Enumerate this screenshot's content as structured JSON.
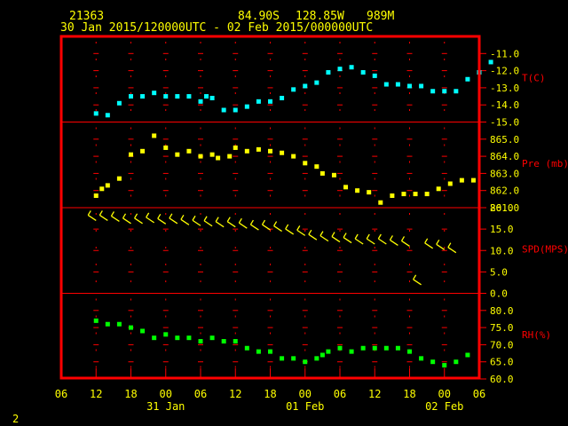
{
  "header": {
    "station_id": "21363",
    "latitude": "84.90S",
    "longitude": "128.85W",
    "pressure_level": "989M",
    "time_range": "30 Jan 2015/120000UTC - 02 Feb 2015/000000UTC"
  },
  "corner_label": "2",
  "colors": {
    "frame": "#ff0000",
    "tick_labels": "#ffff00",
    "temperature": "#00ffff",
    "pressure": "#ffff00",
    "wind": "#ffff00",
    "humidity": "#00ff00",
    "background": "#000000"
  },
  "chart_data": {
    "type": "scatter",
    "x_unit": "hours since 30 Jan 2015 00 UTC",
    "x_ticks": [
      "06",
      "12",
      "18",
      "00",
      "06",
      "12",
      "18",
      "00",
      "06",
      "12",
      "18",
      "00",
      "06"
    ],
    "x_tick_values": [
      6,
      12,
      18,
      24,
      30,
      36,
      42,
      48,
      54,
      60,
      66,
      72,
      78
    ],
    "date_labels": [
      {
        "text": "31 Jan",
        "x": 24
      },
      {
        "text": "01 Feb",
        "x": 48
      },
      {
        "text": "02 Feb",
        "x": 72
      }
    ],
    "xlim": [
      6,
      78
    ],
    "panels": [
      {
        "key": "T",
        "label": "T(C)",
        "ylim": [
          -15.0,
          -10.0
        ],
        "ticks": [
          "-11.0",
          "-12.0",
          "-13.0",
          "-14.0",
          "-15.0"
        ],
        "tick_values": [
          -11,
          -12,
          -13,
          -14,
          -15
        ],
        "color_key": "temperature",
        "points": [
          [
            12,
            -14.5
          ],
          [
            14,
            -14.6
          ],
          [
            16,
            -13.9
          ],
          [
            18,
            -13.5
          ],
          [
            20,
            -13.5
          ],
          [
            22,
            -13.3
          ],
          [
            24,
            -13.5
          ],
          [
            26,
            -13.5
          ],
          [
            28,
            -13.5
          ],
          [
            30,
            -13.8
          ],
          [
            31,
            -13.5
          ],
          [
            32,
            -13.6
          ],
          [
            34,
            -14.3
          ],
          [
            36,
            -14.3
          ],
          [
            38,
            -14.1
          ],
          [
            40,
            -13.8
          ],
          [
            42,
            -13.8
          ],
          [
            44,
            -13.6
          ],
          [
            46,
            -13.1
          ],
          [
            48,
            -12.9
          ],
          [
            50,
            -12.7
          ],
          [
            52,
            -12.1
          ],
          [
            54,
            -11.9
          ],
          [
            56,
            -11.8
          ],
          [
            58,
            -12.1
          ],
          [
            60,
            -12.3
          ],
          [
            62,
            -12.8
          ],
          [
            64,
            -12.8
          ],
          [
            66,
            -12.9
          ],
          [
            68,
            -12.9
          ],
          [
            70,
            -13.2
          ],
          [
            72,
            -13.2
          ],
          [
            74,
            -13.2
          ],
          [
            76,
            -12.5
          ],
          [
            78,
            -12.1
          ],
          [
            80,
            -11.5
          ]
        ]
      },
      {
        "key": "P",
        "label": "Pre (mb)",
        "ylim": [
          861.0,
          866.0
        ],
        "ticks": [
          "865.0",
          "864.0",
          "863.0",
          "862.0",
          "861.0"
        ],
        "tick_values": [
          865,
          864,
          863,
          862,
          861
        ],
        "color_key": "pressure",
        "points": [
          [
            12,
            861.7
          ],
          [
            13,
            862.1
          ],
          [
            14,
            862.3
          ],
          [
            16,
            862.7
          ],
          [
            18,
            864.1
          ],
          [
            20,
            864.3
          ],
          [
            22,
            865.2
          ],
          [
            24,
            864.5
          ],
          [
            26,
            864.1
          ],
          [
            28,
            864.3
          ],
          [
            30,
            864.0
          ],
          [
            32,
            864.1
          ],
          [
            33,
            863.9
          ],
          [
            35,
            864.0
          ],
          [
            36,
            864.5
          ],
          [
            38,
            864.3
          ],
          [
            40,
            864.4
          ],
          [
            42,
            864.3
          ],
          [
            44,
            864.2
          ],
          [
            46,
            864.0
          ],
          [
            48,
            863.6
          ],
          [
            50,
            863.4
          ],
          [
            51,
            863.0
          ],
          [
            53,
            862.9
          ],
          [
            55,
            862.2
          ],
          [
            57,
            862.0
          ],
          [
            59,
            861.9
          ],
          [
            61,
            861.3
          ],
          [
            63,
            861.7
          ],
          [
            65,
            861.8
          ],
          [
            67,
            861.8
          ],
          [
            69,
            861.8
          ],
          [
            71,
            862.1
          ],
          [
            73,
            862.4
          ],
          [
            75,
            862.6
          ],
          [
            77,
            862.6
          ]
        ]
      },
      {
        "key": "SPD",
        "label": "SPD(MPS)",
        "ylim": [
          0.0,
          20.0
        ],
        "ticks": [
          "20.0",
          "15.0",
          "10.0",
          "5.0",
          "0.0"
        ],
        "tick_values": [
          20,
          15,
          10,
          5,
          0
        ],
        "color_key": "wind",
        "points": [
          [
            12,
            17
          ],
          [
            14,
            17
          ],
          [
            16,
            16.8
          ],
          [
            18,
            16.3
          ],
          [
            20,
            16.3
          ],
          [
            22,
            16.5
          ],
          [
            24,
            16.2
          ],
          [
            26,
            16.3
          ],
          [
            28,
            16
          ],
          [
            30,
            15.8
          ],
          [
            32,
            15.7
          ],
          [
            34,
            15.5
          ],
          [
            36,
            15.5
          ],
          [
            38,
            15.2
          ],
          [
            40,
            14.8
          ],
          [
            42,
            14.8
          ],
          [
            44,
            14.5
          ],
          [
            46,
            13.8
          ],
          [
            48,
            13.5
          ],
          [
            50,
            12.5
          ],
          [
            52,
            12.2
          ],
          [
            54,
            12.0
          ],
          [
            56,
            11.8
          ],
          [
            58,
            11.5
          ],
          [
            60,
            11.5
          ],
          [
            62,
            11.5
          ],
          [
            64,
            11.2
          ],
          [
            66,
            11.0
          ],
          [
            68,
            2.0
          ],
          [
            70,
            10.5
          ],
          [
            72,
            10.2
          ],
          [
            74,
            9.5
          ]
        ]
      },
      {
        "key": "RH",
        "label": "RH(%)",
        "ylim": [
          60.0,
          85.0
        ],
        "ticks": [
          "80.0",
          "75.0",
          "70.0",
          "65.0",
          "60.0"
        ],
        "tick_values": [
          80,
          75,
          70,
          65,
          60
        ],
        "color_key": "humidity",
        "points": [
          [
            12,
            77
          ],
          [
            14,
            76
          ],
          [
            16,
            76
          ],
          [
            18,
            75
          ],
          [
            20,
            74
          ],
          [
            22,
            72
          ],
          [
            24,
            73
          ],
          [
            26,
            72
          ],
          [
            28,
            72
          ],
          [
            30,
            71
          ],
          [
            32,
            72
          ],
          [
            34,
            71
          ],
          [
            36,
            71
          ],
          [
            38,
            69
          ],
          [
            40,
            68
          ],
          [
            42,
            68
          ],
          [
            44,
            66
          ],
          [
            46,
            66
          ],
          [
            48,
            65
          ],
          [
            50,
            66
          ],
          [
            51,
            67
          ],
          [
            52,
            68
          ],
          [
            54,
            69
          ],
          [
            56,
            68
          ],
          [
            58,
            69
          ],
          [
            60,
            69
          ],
          [
            62,
            69
          ],
          [
            64,
            69
          ],
          [
            66,
            68
          ],
          [
            68,
            66
          ],
          [
            70,
            65
          ],
          [
            72,
            64
          ],
          [
            74,
            65
          ],
          [
            76,
            67
          ]
        ]
      }
    ]
  }
}
